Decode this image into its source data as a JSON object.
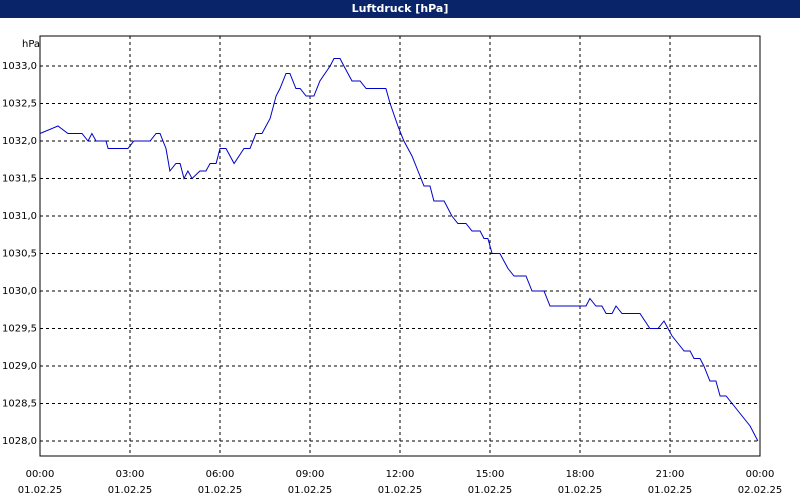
{
  "chart_data": {
    "type": "line",
    "title": "Luftdruck [hPa]",
    "y_label": "hPa",
    "x": [
      0,
      0.6,
      0.93,
      1.4,
      1.6,
      1.73,
      1.87,
      2.2,
      2.27,
      2.93,
      3.13,
      3.67,
      3.87,
      4.0,
      4.2,
      4.33,
      4.53,
      4.67,
      4.8,
      4.93,
      5.07,
      5.33,
      5.53,
      5.67,
      5.87,
      6.0,
      6.2,
      6.47,
      6.8,
      7.0,
      7.2,
      7.4,
      7.67,
      7.87,
      8.0,
      8.2,
      8.33,
      8.53,
      8.67,
      8.87,
      9.13,
      9.33,
      9.67,
      9.8,
      10.0,
      10.13,
      10.4,
      10.67,
      10.87,
      11.53,
      11.67,
      11.93,
      12.13,
      12.4,
      12.6,
      12.8,
      13.0,
      13.13,
      13.47,
      13.73,
      13.93,
      14.2,
      14.4,
      14.67,
      14.8,
      14.93,
      15.07,
      15.33,
      15.6,
      15.8,
      16.2,
      16.4,
      16.8,
      17.0,
      18.2,
      18.33,
      18.53,
      18.73,
      18.87,
      19.07,
      19.2,
      19.4,
      20.0,
      20.33,
      20.6,
      20.8,
      21.07,
      21.27,
      21.47,
      21.67,
      21.8,
      22.0,
      22.13,
      22.33,
      22.53,
      22.67,
      22.87,
      23.27,
      23.67,
      23.93
    ],
    "series": [
      {
        "name": "Luftdruck",
        "color": "#0000c8",
        "values": [
          1032.1,
          1032.2,
          1032.1,
          1032.1,
          1032.0,
          1032.1,
          1032.0,
          1032.0,
          1031.9,
          1031.9,
          1032.0,
          1032.0,
          1032.1,
          1032.1,
          1031.9,
          1031.6,
          1031.7,
          1031.7,
          1031.5,
          1031.6,
          1031.5,
          1031.6,
          1031.6,
          1031.7,
          1031.7,
          1031.9,
          1031.9,
          1031.7,
          1031.9,
          1031.9,
          1032.1,
          1032.1,
          1032.3,
          1032.6,
          1032.7,
          1032.9,
          1032.9,
          1032.7,
          1032.7,
          1032.6,
          1032.6,
          1032.8,
          1033.0,
          1033.1,
          1033.1,
          1033.0,
          1032.8,
          1032.8,
          1032.7,
          1032.7,
          1032.5,
          1032.2,
          1032.0,
          1031.8,
          1031.6,
          1031.4,
          1031.4,
          1031.2,
          1031.2,
          1031.0,
          1030.9,
          1030.9,
          1030.8,
          1030.8,
          1030.7,
          1030.7,
          1030.5,
          1030.5,
          1030.3,
          1030.2,
          1030.2,
          1030.0,
          1030.0,
          1029.8,
          1029.8,
          1029.9,
          1029.8,
          1029.8,
          1029.7,
          1029.7,
          1029.8,
          1029.7,
          1029.7,
          1029.5,
          1029.5,
          1029.6,
          1029.4,
          1029.3,
          1029.2,
          1029.2,
          1029.1,
          1029.1,
          1029.0,
          1028.8,
          1028.8,
          1028.6,
          1028.6,
          1028.4,
          1028.2,
          1028.0
        ]
      }
    ],
    "xlim": [
      0,
      24
    ],
    "xticks": [
      {
        "value": 0,
        "label": "00:00"
      },
      {
        "value": 3,
        "label": "03:00"
      },
      {
        "value": 6,
        "label": "06:00"
      },
      {
        "value": 9,
        "label": "09:00"
      },
      {
        "value": 12,
        "label": "12:00"
      },
      {
        "value": 15,
        "label": "15:00"
      },
      {
        "value": 18,
        "label": "18:00"
      },
      {
        "value": 21,
        "label": "21:00"
      },
      {
        "value": 24,
        "label": "00:00"
      }
    ],
    "xtick_dates": [
      "01.02.25",
      "01.02.25",
      "01.02.25",
      "01.02.25",
      "01.02.25",
      "01.02.25",
      "01.02.25",
      "01.02.25",
      "02.02.25"
    ],
    "ylim": [
      1027.8,
      1033.4
    ],
    "yticks": [
      {
        "value": 1028.0,
        "label": "1028,0"
      },
      {
        "value": 1028.5,
        "label": "1028,5"
      },
      {
        "value": 1029.0,
        "label": "1029,0"
      },
      {
        "value": 1029.5,
        "label": "1029,5"
      },
      {
        "value": 1030.0,
        "label": "1030,0"
      },
      {
        "value": 1030.5,
        "label": "1030,5"
      },
      {
        "value": 1031.0,
        "label": "1031,0"
      },
      {
        "value": 1031.5,
        "label": "1031,5"
      },
      {
        "value": 1032.0,
        "label": "1032,0"
      },
      {
        "value": 1032.5,
        "label": "1032,5"
      },
      {
        "value": 1033.0,
        "label": "1033,0"
      }
    ],
    "grid": true
  }
}
